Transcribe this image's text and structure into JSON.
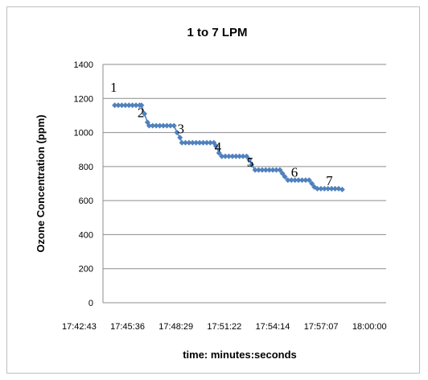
{
  "chart_data": {
    "type": "line",
    "title": "1 to 7 LPM",
    "xlabel": "time: minutes:seconds",
    "ylabel": "Ozone Concentration (ppm)",
    "ylim": [
      0,
      1400
    ],
    "yticks": [
      0,
      200,
      400,
      600,
      800,
      1000,
      1200,
      1400
    ],
    "x_tick_labels": [
      "17:42:43",
      "17:45:36",
      "17:48:29",
      "17:51:22",
      "17:54:14",
      "17:57:07",
      "18:00:00"
    ],
    "x_range": [
      "17:42:43",
      "18:00:00"
    ],
    "grid": "horizontal",
    "legend": "none",
    "series_color": "#4f81bd",
    "series": [
      {
        "values": [
          [
            "17:43:26",
            1160
          ],
          [
            "17:43:39",
            1160
          ],
          [
            "17:43:52",
            1160
          ],
          [
            "17:44:05",
            1160
          ],
          [
            "17:44:18",
            1160
          ],
          [
            "17:44:31",
            1160
          ],
          [
            "17:44:44",
            1160
          ],
          [
            "17:44:57",
            1160
          ],
          [
            "17:45:04",
            1160
          ],
          [
            "17:45:15",
            1110
          ],
          [
            "17:45:26",
            1060
          ],
          [
            "17:45:32",
            1040
          ],
          [
            "17:45:45",
            1040
          ],
          [
            "17:45:58",
            1040
          ],
          [
            "17:46:11",
            1040
          ],
          [
            "17:46:24",
            1040
          ],
          [
            "17:46:37",
            1040
          ],
          [
            "17:46:50",
            1040
          ],
          [
            "17:47:03",
            1040
          ],
          [
            "17:47:14",
            1000
          ],
          [
            "17:47:25",
            970
          ],
          [
            "17:47:32",
            940
          ],
          [
            "17:47:45",
            940
          ],
          [
            "17:47:58",
            940
          ],
          [
            "17:48:11",
            940
          ],
          [
            "17:48:24",
            940
          ],
          [
            "17:48:37",
            940
          ],
          [
            "17:48:50",
            940
          ],
          [
            "17:49:03",
            940
          ],
          [
            "17:49:16",
            940
          ],
          [
            "17:49:29",
            940
          ],
          [
            "17:49:37",
            920
          ],
          [
            "17:49:48",
            880
          ],
          [
            "17:49:58",
            860
          ],
          [
            "17:50:11",
            860
          ],
          [
            "17:50:24",
            860
          ],
          [
            "17:50:37",
            860
          ],
          [
            "17:50:50",
            860
          ],
          [
            "17:51:03",
            860
          ],
          [
            "17:51:16",
            860
          ],
          [
            "17:51:29",
            860
          ],
          [
            "17:51:39",
            840
          ],
          [
            "17:51:47",
            810
          ],
          [
            "17:52:00",
            780
          ],
          [
            "17:52:13",
            780
          ],
          [
            "17:52:26",
            780
          ],
          [
            "17:52:39",
            780
          ],
          [
            "17:52:52",
            780
          ],
          [
            "17:53:05",
            780
          ],
          [
            "17:53:18",
            780
          ],
          [
            "17:53:31",
            780
          ],
          [
            "17:53:40",
            760
          ],
          [
            "17:53:49",
            740
          ],
          [
            "17:54:00",
            720
          ],
          [
            "17:54:13",
            720
          ],
          [
            "17:54:26",
            720
          ],
          [
            "17:54:39",
            720
          ],
          [
            "17:54:52",
            720
          ],
          [
            "17:55:05",
            720
          ],
          [
            "17:55:18",
            720
          ],
          [
            "17:55:28",
            700
          ],
          [
            "17:55:37",
            680
          ],
          [
            "17:55:48",
            670
          ],
          [
            "17:56:01",
            670
          ],
          [
            "17:56:14",
            670
          ],
          [
            "17:56:27",
            670
          ],
          [
            "17:56:40",
            670
          ],
          [
            "17:56:53",
            670
          ],
          [
            "17:57:06",
            670
          ],
          [
            "17:57:19",
            665
          ]
        ]
      }
    ],
    "annotations": [
      {
        "text": "1",
        "x": "17:43:22",
        "y": 1240
      },
      {
        "text": "2",
        "x": "17:45:02",
        "y": 1090
      },
      {
        "text": "3",
        "x": "17:47:28",
        "y": 995
      },
      {
        "text": "4",
        "x": "17:49:44",
        "y": 890
      },
      {
        "text": "5",
        "x": "17:51:42",
        "y": 800
      },
      {
        "text": "6",
        "x": "17:54:24",
        "y": 740
      },
      {
        "text": "7",
        "x": "17:56:32",
        "y": 690
      }
    ]
  }
}
